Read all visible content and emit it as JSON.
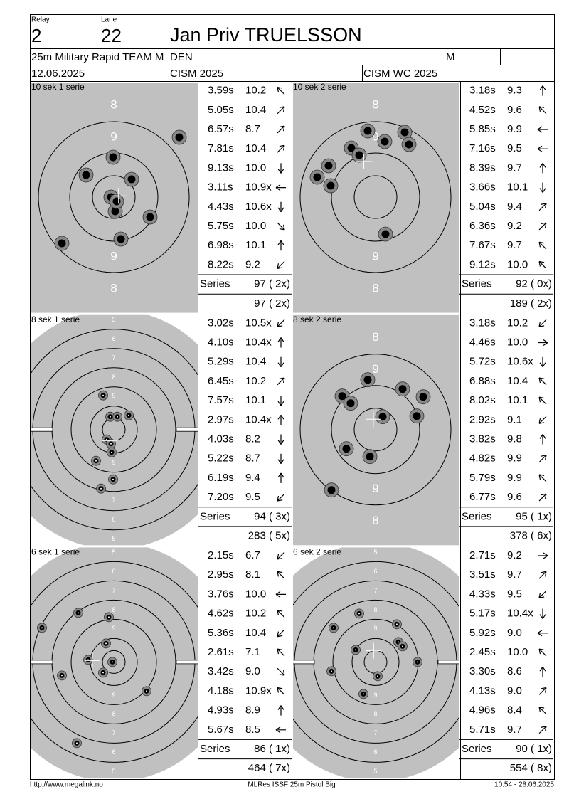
{
  "header": {
    "relay_label": "Relay",
    "relay": "2",
    "lane_label": "Lane",
    "lane": "22",
    "name": "Jan Priv TRUELSSON",
    "event": "25m Military Rapid TEAM M",
    "nation": "DEN",
    "class": "M",
    "date": "12.06.2025",
    "competition": "CISM 2025",
    "match": "CISM WC 2025"
  },
  "panels": [
    {
      "title": "10 sek 1 serie",
      "target": "precision",
      "ring_labels": [
        "8",
        "9",
        "9",
        "8"
      ],
      "shots": [
        {
          "time": "3.59s",
          "score": "10.2"
        },
        {
          "time": "5.05s",
          "score": "10.4"
        },
        {
          "time": "6.57s",
          "score": "8.7"
        },
        {
          "time": "7.81s",
          "score": "10.4"
        },
        {
          "time": "9.13s",
          "score": "10.0"
        },
        {
          "time": "3.11s",
          "score": "10.9x"
        },
        {
          "time": "4.43s",
          "score": "10.6x"
        },
        {
          "time": "5.75s",
          "score": "10.0"
        },
        {
          "time": "6.98s",
          "score": "10.1"
        },
        {
          "time": "8.22s",
          "score": "9.2"
        }
      ],
      "series_label": "Series",
      "series": "97 ( 2x)",
      "total": "97 ( 2x)"
    },
    {
      "title": "10 sek 2 serie",
      "target": "precision",
      "ring_labels": [
        "8",
        "9",
        "9",
        "8"
      ],
      "shots": [
        {
          "time": "3.18s",
          "score": "9.3"
        },
        {
          "time": "4.52s",
          "score": "9.6"
        },
        {
          "time": "5.85s",
          "score": "9.9"
        },
        {
          "time": "7.16s",
          "score": "9.5"
        },
        {
          "time": "8.39s",
          "score": "9.7"
        },
        {
          "time": "3.66s",
          "score": "10.1"
        },
        {
          "time": "5.04s",
          "score": "9.4"
        },
        {
          "time": "6.36s",
          "score": "9.2"
        },
        {
          "time": "7.67s",
          "score": "9.7"
        },
        {
          "time": "9.12s",
          "score": "10.0"
        }
      ],
      "series_label": "Series",
      "series": "92 ( 0x)",
      "total": "189 ( 2x)"
    },
    {
      "title": "8 sek 1 serie",
      "target": "rapid",
      "ring_labels": [
        "5",
        "6",
        "7",
        "8",
        "9",
        "9",
        "8",
        "7",
        "6",
        "5"
      ],
      "shots": [
        {
          "time": "3.02s",
          "score": "10.5x"
        },
        {
          "time": "4.10s",
          "score": "10.4x"
        },
        {
          "time": "5.29s",
          "score": "10.4"
        },
        {
          "time": "6.45s",
          "score": "10.2"
        },
        {
          "time": "7.57s",
          "score": "10.1"
        },
        {
          "time": "2.97s",
          "score": "10.4x"
        },
        {
          "time": "4.03s",
          "score": "8.2"
        },
        {
          "time": "5.22s",
          "score": "8.7"
        },
        {
          "time": "6.19s",
          "score": "9.4"
        },
        {
          "time": "7.20s",
          "score": "9.5"
        }
      ],
      "series_label": "Series",
      "series": "94 ( 3x)",
      "total": "283 ( 5x)"
    },
    {
      "title": "8 sek 2 serie",
      "target": "precision",
      "ring_labels": [
        "8",
        "9",
        "9",
        "8"
      ],
      "shots": [
        {
          "time": "3.18s",
          "score": "10.2"
        },
        {
          "time": "4.46s",
          "score": "10.0"
        },
        {
          "time": "5.72s",
          "score": "10.6x"
        },
        {
          "time": "6.88s",
          "score": "10.4"
        },
        {
          "time": "8.02s",
          "score": "10.1"
        },
        {
          "time": "2.92s",
          "score": "9.1"
        },
        {
          "time": "3.82s",
          "score": "9.8"
        },
        {
          "time": "4.82s",
          "score": "9.9"
        },
        {
          "time": "5.79s",
          "score": "9.9"
        },
        {
          "time": "6.77s",
          "score": "9.6"
        }
      ],
      "series_label": "Series",
      "series": "95 ( 1x)",
      "total": "378 ( 6x)"
    },
    {
      "title": "6 sek 1 serie",
      "target": "rapid",
      "ring_labels": [
        "5",
        "6",
        "7",
        "8",
        "9",
        "9",
        "8",
        "7",
        "6",
        "5"
      ],
      "shots": [
        {
          "time": "2.15s",
          "score": "6.7"
        },
        {
          "time": "2.95s",
          "score": "8.1"
        },
        {
          "time": "3.76s",
          "score": "10.0"
        },
        {
          "time": "4.62s",
          "score": "10.2"
        },
        {
          "time": "5.36s",
          "score": "10.4"
        },
        {
          "time": "2.61s",
          "score": "7.1"
        },
        {
          "time": "3.42s",
          "score": "9.0"
        },
        {
          "time": "4.18s",
          "score": "10.9x"
        },
        {
          "time": "4.93s",
          "score": "8.9"
        },
        {
          "time": "5.67s",
          "score": "8.5"
        }
      ],
      "series_label": "Series",
      "series": "86 ( 1x)",
      "total": "464 ( 7x)"
    },
    {
      "title": "6 sek 2 serie",
      "target": "rapid",
      "ring_labels": [
        "5",
        "6",
        "7",
        "8",
        "9",
        "9",
        "8",
        "7",
        "6",
        "5"
      ],
      "shots": [
        {
          "time": "2.71s",
          "score": "9.2"
        },
        {
          "time": "3.51s",
          "score": "9.7"
        },
        {
          "time": "4.33s",
          "score": "9.5"
        },
        {
          "time": "5.17s",
          "score": "10.4x"
        },
        {
          "time": "5.92s",
          "score": "9.0"
        },
        {
          "time": "2.45s",
          "score": "10.0"
        },
        {
          "time": "3.30s",
          "score": "8.6"
        },
        {
          "time": "4.13s",
          "score": "9.0"
        },
        {
          "time": "4.96s",
          "score": "8.4"
        },
        {
          "time": "5.71s",
          "score": "9.7"
        }
      ],
      "series_label": "Series",
      "series": "90 ( 1x)",
      "total": "554 ( 8x)"
    }
  ],
  "footer": {
    "url": "http://www.megalink.no",
    "program": "MLRes ISSF 25m Pistol Big",
    "timestamp": "10:54 - 28.06.2025"
  }
}
